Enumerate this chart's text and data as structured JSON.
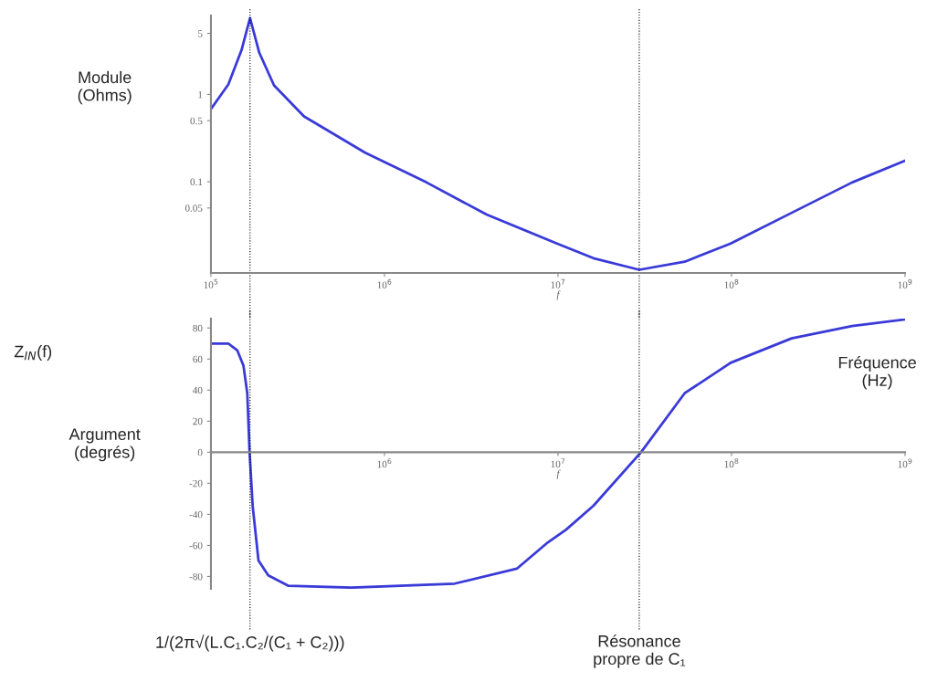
{
  "chart_data": [
    {
      "type": "line",
      "ylabel": "Module\n(Ohms)",
      "xlabel": "f",
      "annotations": [
        "Z$_{IN}$(f)"
      ],
      "log": "xy",
      "xlim": [
        100000,
        1000000000
      ],
      "ylim": [
        0.009,
        8
      ],
      "xticks": [
        {
          "value": 100000,
          "label": "10$^{5}$"
        },
        {
          "value": 1000000,
          "label": "10$^{6}$"
        },
        {
          "value": 10000000,
          "label": "10$^{7}$"
        },
        {
          "value": 100000000,
          "label": "10$^{8}$"
        },
        {
          "value": 1000000000,
          "label": "10$^{9}$"
        }
      ],
      "yticks": [
        5,
        1,
        0.5,
        0.1,
        0.05
      ],
      "x": [
        100000,
        126000,
        150000,
        168000,
        190000,
        231000,
        344000,
        774000,
        1750000,
        3880000,
        9860000,
        16000000,
        29400000,
        53700000,
        98900000,
        222000000,
        495000000,
        1000000000
      ],
      "series": [
        {
          "color": "#3a3ad8",
          "values": [
            0.68,
            1.3,
            3.2,
            7.5,
            3.0,
            1.27,
            0.56,
            0.215,
            0.098,
            0.042,
            0.0196,
            0.0133,
            0.0098,
            0.0121,
            0.0196,
            0.044,
            0.098,
            0.174
          ]
        }
      ],
      "ref_lines": [
        {
          "axis": "x",
          "value": 168000,
          "line_style": "dotted",
          "color": "#000000"
        },
        {
          "axis": "x",
          "value": 29400000,
          "line_style": "dotted",
          "color": "#000000"
        }
      ]
    },
    {
      "type": "line",
      "ylabel": "Argument\n(degrés)",
      "xlabel": "f",
      "annotations": [
        "Fréquence\n(Hz)"
      ],
      "log": "x",
      "xlim": [
        100000,
        1000000000
      ],
      "ylim": [
        -88,
        86
      ],
      "xticks": [
        {
          "value": 1000000,
          "label": "10$^{6}$"
        },
        {
          "value": 10000000,
          "label": "10$^{7}$"
        },
        {
          "value": 100000000,
          "label": "10$^{8}$"
        },
        {
          "value": 1000000000,
          "label": "10$^{9}$"
        }
      ],
      "yticks": [
        80,
        60,
        40,
        20,
        0,
        -20,
        -40,
        -60,
        -80
      ],
      "x": [
        100000,
        126000,
        142000,
        154000,
        162000,
        167000,
        174000,
        188000,
        214000,
        280000,
        643000,
        2540000,
        5790000,
        8750000,
        11100000,
        16000000,
        30100000,
        53700000,
        98900000,
        222000000,
        495000000,
        1000000000
      ],
      "series": [
        {
          "color": "#3a3ad8",
          "values": [
            70,
            70,
            65.5,
            55.7,
            38,
            0,
            -34.5,
            -69.8,
            -79.3,
            -86,
            -87.2,
            -84.6,
            -75,
            -58,
            -50,
            -34.5,
            0,
            38,
            57.6,
            73.3,
            81.2,
            85.5
          ]
        }
      ],
      "ref_lines": [
        {
          "axis": "x",
          "value": 168000,
          "line_style": "dotted",
          "color": "#000000",
          "label": "1/(2π√(L.C₁.C₂/(C₁ + C₂)))"
        },
        {
          "axis": "x",
          "value": 29400000,
          "line_style": "dotted",
          "color": "#000000",
          "label": "Résonance\npropre de C₁"
        }
      ]
    }
  ]
}
